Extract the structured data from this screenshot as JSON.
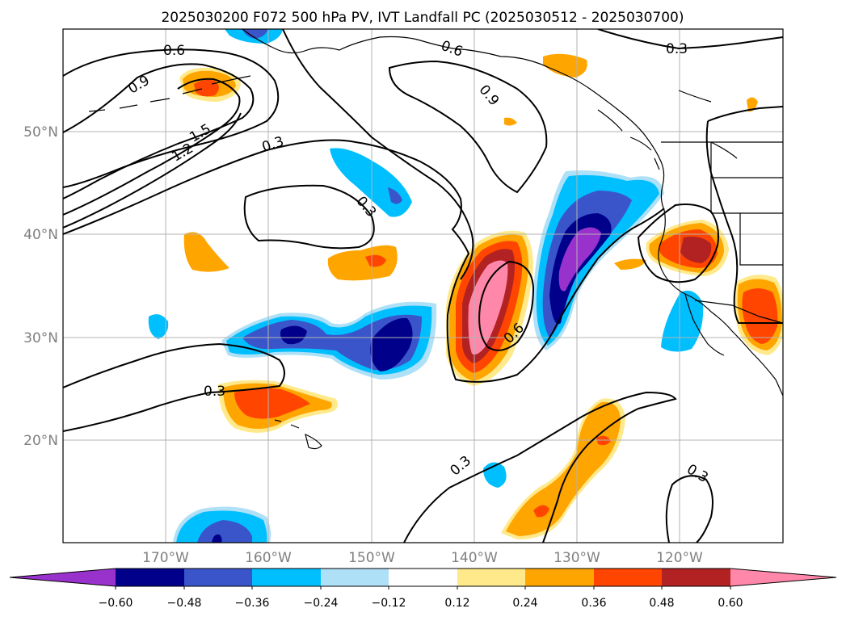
{
  "title": "2025030200 F072 500 hPa PV, IVT Landfall PC (2025030512 - 2025030700)",
  "map": {
    "lon_labels": [
      "170°W",
      "160°W",
      "150°W",
      "140°W",
      "130°W",
      "120°W"
    ],
    "lat_labels": [
      "50°N",
      "40°N",
      "30°N",
      "20°N"
    ],
    "grid_color": "#b3b3b3",
    "label_color": "#808080"
  },
  "contours": {
    "labels": [
      "0.6",
      "0.9",
      "1.5",
      "1.2",
      "0.3",
      "0.3",
      "0.6",
      "0.9",
      "0.3",
      "0.6",
      "0.3",
      "0.3",
      "0.3"
    ]
  },
  "colorbar": {
    "ticks": [
      "−0.60",
      "−0.48",
      "−0.36",
      "−0.24",
      "−0.12",
      "0.12",
      "0.24",
      "0.36",
      "0.48",
      "0.60"
    ],
    "colors": [
      "#9932cc",
      "#00008b",
      "#3a55c9",
      "#00bfff",
      "#aee0f7",
      "#ffffff",
      "#ffe98a",
      "#ffa500",
      "#ff4500",
      "#b22222",
      "#ff88aa"
    ]
  }
}
